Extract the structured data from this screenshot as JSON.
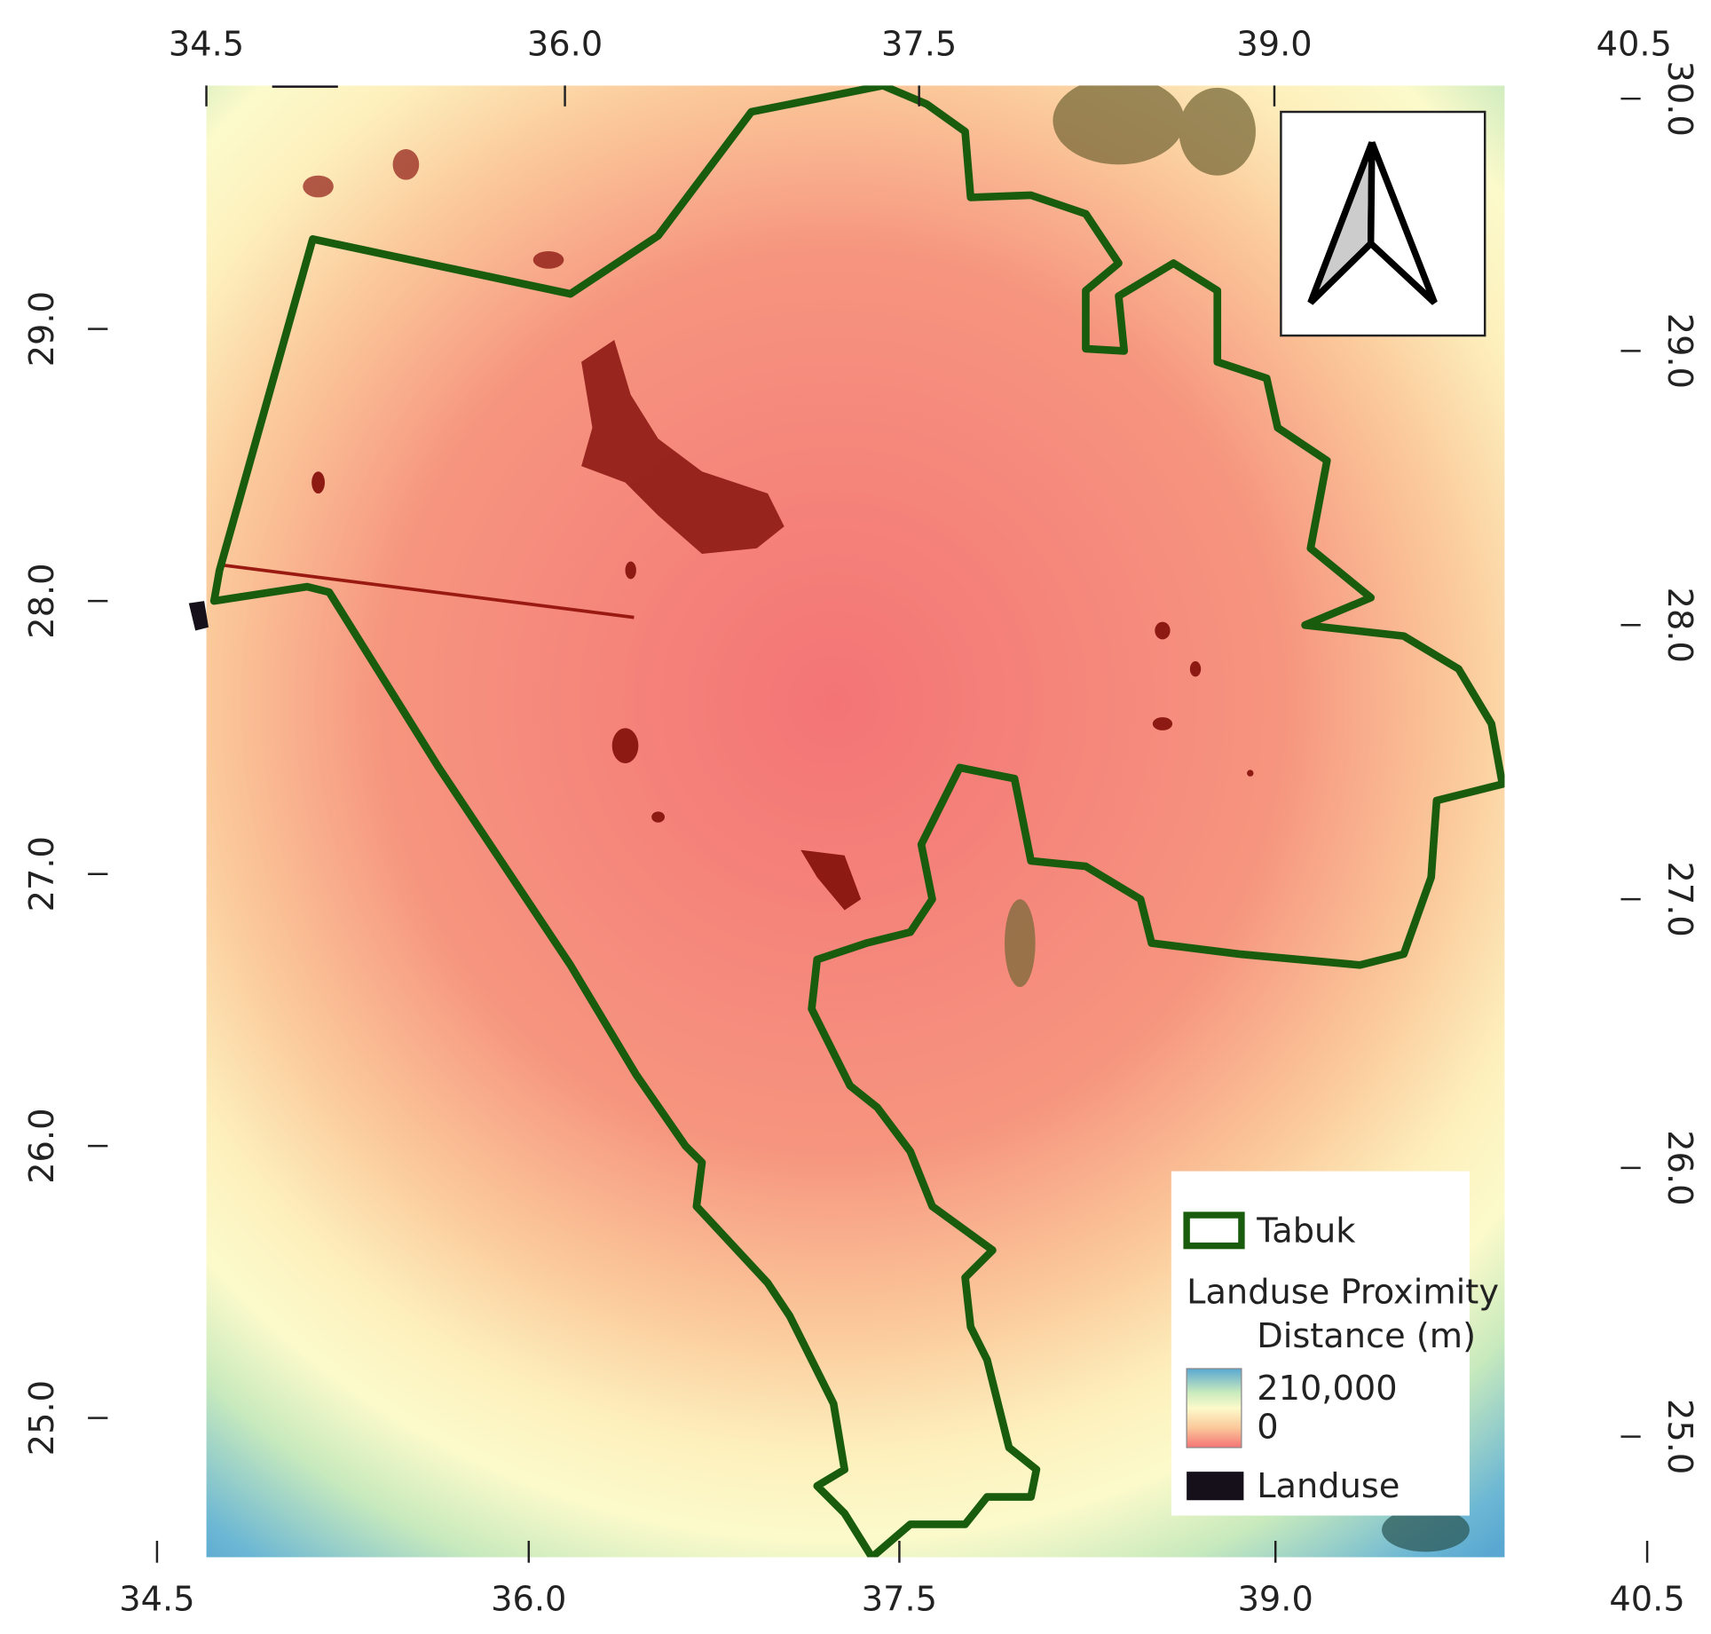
{
  "axes": {
    "top": [
      "34.5",
      "36.0",
      "37.5",
      "39.0",
      "40.5"
    ],
    "bottom": [
      "34.5",
      "36.0",
      "37.5",
      "39.0",
      "40.5"
    ],
    "left": [
      "29.0",
      "28.0",
      "27.0",
      "26.0",
      "25.0"
    ],
    "right": [
      "30.0",
      "29.0",
      "28.0",
      "27.0",
      "26.0",
      "25.0"
    ]
  },
  "legend": {
    "boundary": "Tabuk",
    "raster_title": "Landuse Proximity",
    "raster_subtitle": "Distance (m)",
    "raster_max": "210,000",
    "raster_min": "0",
    "landuse": "Landuse"
  }
}
